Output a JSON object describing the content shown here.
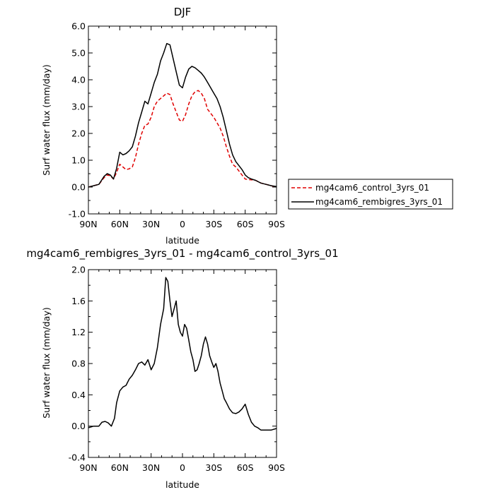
{
  "chart_data": [
    {
      "type": "line",
      "title": "DJF",
      "xlabel": "latitude",
      "ylabel": "Surf water flux (mm/day)",
      "xlim": [
        90,
        -90
      ],
      "ylim": [
        -1.0,
        6.0
      ],
      "xticks": [
        90,
        60,
        30,
        0,
        -30,
        -60,
        -90
      ],
      "xtick_labels": [
        "90N",
        "60N",
        "30N",
        "0",
        "30S",
        "60S",
        "90S"
      ],
      "yticks": [
        -1.0,
        0.0,
        1.0,
        2.0,
        3.0,
        4.0,
        5.0,
        6.0
      ],
      "ytick_labels": [
        "-1.0",
        "0.0",
        "1.0",
        "2.0",
        "3.0",
        "4.0",
        "5.0",
        "6.0"
      ],
      "legend_position": "right, outside plot",
      "series": [
        {
          "name": "mg4cam6_control_3yrs_01",
          "color": "#e00000",
          "style": "dashed",
          "x": [
            90,
            85,
            80,
            75,
            72,
            69,
            66,
            63,
            60,
            57,
            54,
            51,
            48,
            45,
            42,
            39,
            36,
            33,
            30,
            27,
            24,
            21,
            18,
            15,
            12,
            9,
            6,
            3,
            0,
            -3,
            -6,
            -9,
            -12,
            -15,
            -18,
            -21,
            -24,
            -27,
            -30,
            -33,
            -36,
            -39,
            -42,
            -45,
            -48,
            -51,
            -54,
            -57,
            -60,
            -63,
            -66,
            -70,
            -75,
            -80,
            -85,
            -90
          ],
          "y": [
            0.0,
            0.05,
            0.1,
            0.35,
            0.45,
            0.42,
            0.3,
            0.55,
            0.85,
            0.75,
            0.65,
            0.68,
            0.75,
            1.1,
            1.6,
            2.0,
            2.3,
            2.35,
            2.6,
            3.0,
            3.2,
            3.3,
            3.4,
            3.5,
            3.45,
            3.1,
            2.8,
            2.5,
            2.45,
            2.7,
            3.1,
            3.4,
            3.55,
            3.6,
            3.5,
            3.3,
            2.9,
            2.75,
            2.6,
            2.4,
            2.2,
            1.9,
            1.5,
            1.15,
            0.85,
            0.75,
            0.6,
            0.45,
            0.3,
            0.28,
            0.27,
            0.25,
            0.15,
            0.1,
            0.05,
            0.0
          ]
        },
        {
          "name": "mg4cam6_rembigres_3yrs_01",
          "color": "#000000",
          "style": "solid",
          "x": [
            90,
            85,
            80,
            75,
            72,
            69,
            66,
            63,
            60,
            57,
            54,
            51,
            48,
            45,
            42,
            39,
            36,
            33,
            30,
            27,
            24,
            21,
            18,
            15,
            12,
            9,
            6,
            3,
            0,
            -3,
            -6,
            -9,
            -12,
            -15,
            -18,
            -21,
            -24,
            -27,
            -30,
            -33,
            -36,
            -39,
            -42,
            -45,
            -48,
            -51,
            -54,
            -57,
            -60,
            -63,
            -66,
            -70,
            -75,
            -80,
            -85,
            -90
          ],
          "y": [
            0.0,
            0.05,
            0.1,
            0.4,
            0.5,
            0.45,
            0.3,
            0.7,
            1.3,
            1.2,
            1.25,
            1.35,
            1.5,
            1.9,
            2.4,
            2.8,
            3.2,
            3.1,
            3.5,
            3.9,
            4.2,
            4.7,
            5.0,
            5.35,
            5.3,
            4.8,
            4.3,
            3.8,
            3.7,
            4.1,
            4.4,
            4.5,
            4.45,
            4.35,
            4.25,
            4.1,
            3.9,
            3.7,
            3.5,
            3.3,
            3.0,
            2.6,
            2.1,
            1.6,
            1.2,
            0.95,
            0.8,
            0.65,
            0.45,
            0.35,
            0.3,
            0.25,
            0.15,
            0.1,
            0.05,
            0.02
          ]
        }
      ]
    },
    {
      "type": "line",
      "title": "mg4cam6_rembigres_3yrs_01 - mg4cam6_control_3yrs_01",
      "xlabel": "latitude",
      "ylabel": "Surf water flux (mm/day)",
      "xlim": [
        90,
        -90
      ],
      "ylim": [
        -0.4,
        2.0
      ],
      "xticks": [
        90,
        60,
        30,
        0,
        -30,
        -60,
        -90
      ],
      "xtick_labels": [
        "90N",
        "60N",
        "30N",
        "0",
        "30S",
        "60S",
        "90S"
      ],
      "yticks": [
        -0.4,
        0.0,
        0.4,
        0.8,
        1.2,
        1.6,
        2.0
      ],
      "ytick_labels": [
        "-0.4",
        "0.0",
        "0.4",
        "0.8",
        "1.2",
        "1.6",
        "2.0"
      ],
      "series": [
        {
          "color": "#000000",
          "style": "solid",
          "x": [
            90,
            85,
            80,
            77,
            74,
            71,
            68,
            65,
            63,
            60,
            57,
            54,
            51,
            48,
            45,
            42,
            39,
            36,
            33,
            30,
            27,
            24,
            21,
            18,
            16,
            14,
            12,
            10,
            8,
            6,
            4,
            2,
            0,
            -2,
            -4,
            -6,
            -8,
            -10,
            -12,
            -14,
            -16,
            -18,
            -20,
            -22,
            -24,
            -26,
            -28,
            -30,
            -32,
            -34,
            -36,
            -38,
            -40,
            -42,
            -45,
            -48,
            -51,
            -54,
            -57,
            -60,
            -63,
            -66,
            -69,
            -72,
            -75,
            -80,
            -85,
            -90
          ],
          "y": [
            -0.02,
            0.0,
            0.0,
            0.05,
            0.06,
            0.04,
            0.0,
            0.1,
            0.3,
            0.45,
            0.5,
            0.52,
            0.6,
            0.65,
            0.72,
            0.8,
            0.82,
            0.78,
            0.85,
            0.72,
            0.8,
            1.0,
            1.3,
            1.5,
            1.9,
            1.85,
            1.6,
            1.4,
            1.5,
            1.6,
            1.3,
            1.2,
            1.15,
            1.3,
            1.25,
            1.1,
            0.95,
            0.85,
            0.7,
            0.72,
            0.8,
            0.9,
            1.05,
            1.14,
            1.05,
            0.9,
            0.82,
            0.75,
            0.8,
            0.7,
            0.55,
            0.45,
            0.35,
            0.3,
            0.22,
            0.17,
            0.16,
            0.18,
            0.22,
            0.28,
            0.15,
            0.05,
            0.0,
            -0.02,
            -0.05,
            -0.05,
            -0.05,
            -0.03
          ]
        }
      ]
    }
  ]
}
